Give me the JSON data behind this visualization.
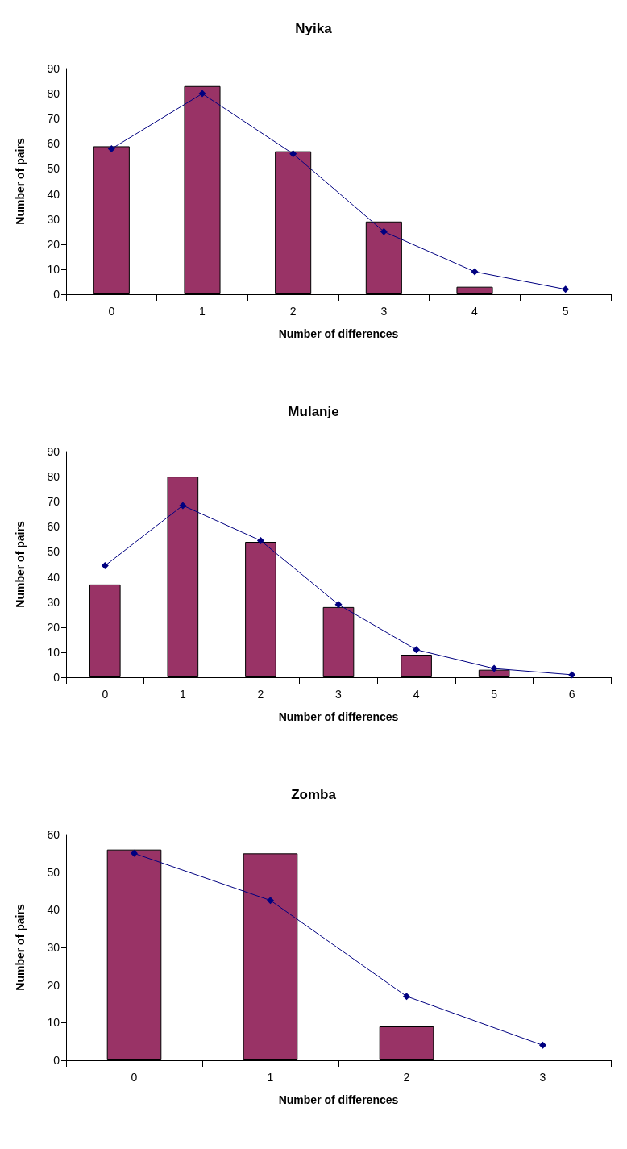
{
  "chart_data": [
    {
      "type": "bar",
      "title": "Nyika",
      "xlabel": "Number of differences",
      "ylabel": "Number of pairs",
      "categories": [
        "0",
        "1",
        "2",
        "3",
        "4",
        "5"
      ],
      "ylim": [
        0,
        90
      ],
      "yticks": [
        0,
        10,
        20,
        30,
        40,
        50,
        60,
        70,
        80,
        90
      ],
      "grid": false,
      "series": [
        {
          "color": "#993366",
          "values": [
            59,
            83,
            57,
            29,
            3,
            null
          ]
        },
        {
          "type": "line",
          "color": "#000080",
          "marker": "diamond",
          "values": [
            58,
            80,
            56,
            25,
            9,
            2
          ]
        }
      ]
    },
    {
      "type": "bar",
      "title": "Mulanje",
      "xlabel": "Number of differences",
      "ylabel": "Number of pairs",
      "categories": [
        "0",
        "1",
        "2",
        "3",
        "4",
        "5",
        "6"
      ],
      "ylim": [
        0,
        90
      ],
      "yticks": [
        0,
        10,
        20,
        30,
        40,
        50,
        60,
        70,
        80,
        90
      ],
      "grid": false,
      "series": [
        {
          "color": "#993366",
          "values": [
            37,
            80,
            54,
            28,
            9,
            3,
            null
          ]
        },
        {
          "type": "line",
          "color": "#000080",
          "marker": "diamond",
          "values": [
            44.5,
            68.5,
            54.5,
            29,
            11,
            3.5,
            1
          ]
        }
      ]
    },
    {
      "type": "bar",
      "title": "Zomba",
      "xlabel": "Number of differences",
      "ylabel": "Number of pairs",
      "categories": [
        "0",
        "1",
        "2",
        "3"
      ],
      "ylim": [
        0,
        60
      ],
      "yticks": [
        0,
        10,
        20,
        30,
        40,
        50,
        60
      ],
      "grid": false,
      "series": [
        {
          "color": "#993366",
          "values": [
            56,
            55,
            9,
            null
          ]
        },
        {
          "type": "line",
          "color": "#000080",
          "marker": "diamond",
          "values": [
            55,
            42.5,
            17,
            4
          ]
        }
      ]
    }
  ]
}
